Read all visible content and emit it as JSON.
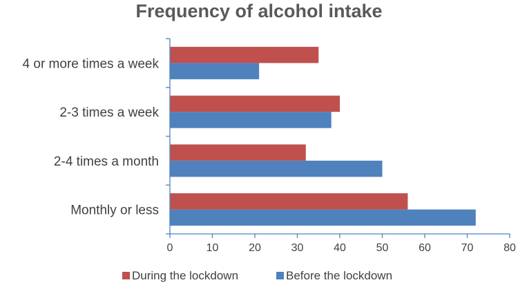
{
  "chart_data": {
    "type": "bar",
    "orientation": "horizontal",
    "title": "Frequency of alcohol intake",
    "categories": [
      "4 or more times a week",
      "2-3 times a week",
      "2-4 times a month",
      "Monthly or less"
    ],
    "series": [
      {
        "name": "During the lockdown",
        "color": "#c0504d",
        "values": [
          35,
          40,
          32,
          56
        ]
      },
      {
        "name": "Before the lockdown",
        "color": "#4f81bd",
        "values": [
          21,
          38,
          50,
          72
        ]
      }
    ],
    "xlim": [
      0,
      80
    ],
    "x_ticks": [
      0,
      10,
      20,
      30,
      40,
      50,
      60,
      70,
      80
    ],
    "xlabel": "",
    "ylabel": "",
    "grid": false,
    "legend_position": "bottom"
  }
}
